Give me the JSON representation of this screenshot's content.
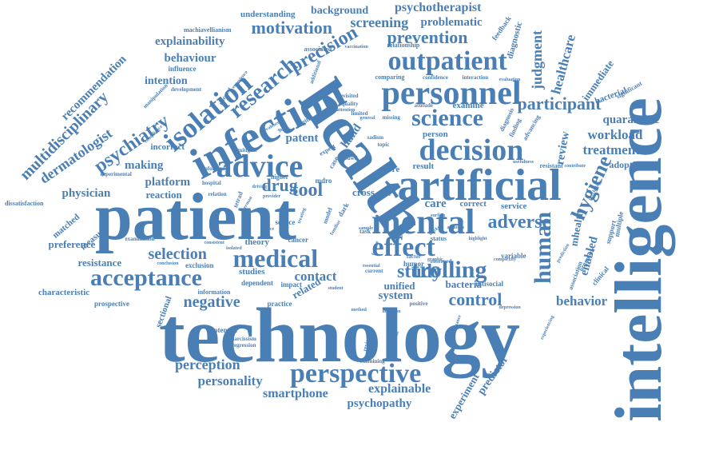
{
  "color": "#4a7fb5",
  "words": [
    {
      "text": "technology",
      "weight": 100
    },
    {
      "text": "intelligence",
      "weight": 92
    },
    {
      "text": "patient",
      "weight": 88
    },
    {
      "text": "health",
      "weight": 80
    },
    {
      "text": "artificial",
      "weight": 66
    },
    {
      "text": "infection",
      "weight": 64
    },
    {
      "text": "personnel",
      "weight": 52
    },
    {
      "text": "mental",
      "weight": 54
    },
    {
      "text": "decision",
      "weight": 48
    },
    {
      "text": "outpatient",
      "weight": 46
    },
    {
      "text": "perspective",
      "weight": 44
    },
    {
      "text": "advice",
      "weight": 44
    },
    {
      "text": "acceptance",
      "weight": 42
    },
    {
      "text": "medical",
      "weight": 40
    },
    {
      "text": "isolation",
      "weight": 42
    },
    {
      "text": "effect",
      "weight": 40
    },
    {
      "text": "trolling",
      "weight": 38
    },
    {
      "text": "science",
      "weight": 36
    },
    {
      "text": "research",
      "weight": 34
    },
    {
      "text": "precision",
      "weight": 32
    },
    {
      "text": "human",
      "weight": 34
    },
    {
      "text": "psychiatry",
      "weight": 30
    },
    {
      "text": "hygiene",
      "weight": 30
    },
    {
      "text": "participant",
      "weight": 28
    },
    {
      "text": "adverse",
      "weight": 28
    },
    {
      "text": "study",
      "weight": 28
    },
    {
      "text": "control",
      "weight": 26
    },
    {
      "text": "tool",
      "weight": 26
    },
    {
      "text": "drug",
      "weight": 24
    },
    {
      "text": "motivation",
      "weight": 24
    },
    {
      "text": "prevention",
      "weight": 24
    },
    {
      "text": "screening",
      "weight": 22
    },
    {
      "text": "multidisciplinary",
      "weight": 22
    },
    {
      "text": "dermatologist",
      "weight": 22
    },
    {
      "text": "negative",
      "weight": 22
    },
    {
      "text": "selection",
      "weight": 22
    },
    {
      "text": "perception",
      "weight": 20
    },
    {
      "text": "personality",
      "weight": 18
    },
    {
      "text": "smartphone",
      "weight": 18
    },
    {
      "text": "explainable",
      "weight": 18
    },
    {
      "text": "psychopathy",
      "weight": 16
    },
    {
      "text": "behavior",
      "weight": 18
    },
    {
      "text": "treatment",
      "weight": 18
    },
    {
      "text": "workload",
      "weight": 18
    },
    {
      "text": "quarantine",
      "weight": 16
    },
    {
      "text": "judgment",
      "weight": 18
    },
    {
      "text": "healthcare",
      "weight": 18
    },
    {
      "text": "psychotherapist",
      "weight": 16
    },
    {
      "text": "problematic",
      "weight": 16
    },
    {
      "text": "background",
      "weight": 14
    },
    {
      "text": "understanding",
      "weight": 12
    },
    {
      "text": "explainability",
      "weight": 16
    },
    {
      "text": "behaviour",
      "weight": 16
    },
    {
      "text": "intention",
      "weight": 16
    },
    {
      "text": "recommendation",
      "weight": 16
    },
    {
      "text": "physician",
      "weight": 16
    },
    {
      "text": "platform",
      "weight": 16
    },
    {
      "text": "making",
      "weight": 16
    },
    {
      "text": "reaction",
      "weight": 14
    },
    {
      "text": "resistance",
      "weight": 14
    },
    {
      "text": "preference",
      "weight": 14
    },
    {
      "text": "contact",
      "weight": 18
    },
    {
      "text": "system",
      "weight": 16
    },
    {
      "text": "care",
      "weight": 16
    },
    {
      "text": "cross",
      "weight": 14
    },
    {
      "text": "patent",
      "weight": 16
    },
    {
      "text": "hand",
      "weight": 16
    },
    {
      "text": "unified",
      "weight": 14
    },
    {
      "text": "bacteria",
      "weight": 14
    },
    {
      "text": "review",
      "weight": 16
    },
    {
      "text": "enabled",
      "weight": 16
    },
    {
      "text": "predictor",
      "weight": 14
    },
    {
      "text": "experiment",
      "weight": 14
    },
    {
      "text": "adoption",
      "weight": 12
    },
    {
      "text": "mhealth",
      "weight": 14
    },
    {
      "text": "immediate",
      "weight": 14
    },
    {
      "text": "bacterial",
      "weight": 12
    },
    {
      "text": "diagnostic",
      "weight": 12
    },
    {
      "text": "related",
      "weight": 14
    },
    {
      "text": "studies",
      "weight": 12
    },
    {
      "text": "theory",
      "weight": 12
    },
    {
      "text": "service",
      "weight": 12
    },
    {
      "text": "correct",
      "weight": 12
    },
    {
      "text": "result",
      "weight": 12
    },
    {
      "text": "more",
      "weight": 12
    },
    {
      "text": "examine",
      "weight": 12
    },
    {
      "text": "person",
      "weight": 12
    },
    {
      "text": "incorrect",
      "weight": 12
    },
    {
      "text": "measure",
      "weight": 12
    },
    {
      "text": "matched",
      "weight": 12
    },
    {
      "text": "characteristic",
      "weight": 12
    },
    {
      "text": "prospective",
      "weight": 10
    },
    {
      "text": "sectional",
      "weight": 12
    },
    {
      "text": "potential",
      "weight": 10
    },
    {
      "text": "practice",
      "weight": 10
    },
    {
      "text": "impact",
      "weight": 10
    },
    {
      "text": "dependent",
      "weight": 10
    },
    {
      "text": "exclusion",
      "weight": 10
    },
    {
      "text": "information",
      "weight": 9
    },
    {
      "text": "dissatisfaction",
      "weight": 9
    },
    {
      "text": "source",
      "weight": 10
    },
    {
      "text": "cancer",
      "weight": 10
    },
    {
      "text": "humor",
      "weight": 10
    },
    {
      "text": "variable",
      "weight": 10
    },
    {
      "text": "antisocial",
      "weight": 10
    },
    {
      "text": "clinical",
      "weight": 10
    },
    {
      "text": "support",
      "weight": 10
    },
    {
      "text": "multiple",
      "weight": 10
    },
    {
      "text": "association",
      "weight": 9
    },
    {
      "text": "organism",
      "weight": 9
    },
    {
      "text": "significant",
      "weight": 9
    },
    {
      "text": "resistant",
      "weight": 9
    },
    {
      "text": "finding",
      "weight": 9
    },
    {
      "text": "advancing",
      "weight": 9
    },
    {
      "text": "diagnosis",
      "weight": 9
    },
    {
      "text": "feedback",
      "weight": 10
    },
    {
      "text": "relationship",
      "weight": 9
    },
    {
      "text": "comparing",
      "weight": 9
    },
    {
      "text": "revisited",
      "weight": 8
    },
    {
      "text": "quality",
      "weight": 8
    },
    {
      "text": "limited",
      "weight": 8
    },
    {
      "text": "missing",
      "weight": 8
    },
    {
      "text": "attitude",
      "weight": 8
    },
    {
      "text": "sadism",
      "weight": 8
    },
    {
      "text": "topic",
      "weight": 8
    },
    {
      "text": "suwd",
      "weight": 8
    },
    {
      "text": "skin",
      "weight": 8
    },
    {
      "text": "digital",
      "weight": 9
    },
    {
      "text": "expert",
      "weight": 9
    },
    {
      "text": "case",
      "weight": 10
    },
    {
      "text": "mdro",
      "weight": 10
    },
    {
      "text": "higher",
      "weight": 9
    },
    {
      "text": "mitigate",
      "weight": 8
    },
    {
      "text": "informed",
      "weight": 8
    },
    {
      "text": "relation",
      "weight": 8
    },
    {
      "text": "hospital",
      "weight": 8
    },
    {
      "text": "experimental",
      "weight": 8
    },
    {
      "text": "manipulation",
      "weight": 8
    },
    {
      "text": "development",
      "weight": 8
    },
    {
      "text": "relevant",
      "weight": 8
    },
    {
      "text": "additional",
      "weight": 8
    },
    {
      "text": "influence",
      "weight": 10
    },
    {
      "text": "machiavellianism",
      "weight": 9
    },
    {
      "text": "associated",
      "weight": 9
    },
    {
      "text": "vaccination",
      "weight": 7
    },
    {
      "text": "confidence",
      "weight": 8
    },
    {
      "text": "interaction",
      "weight": 8
    },
    {
      "text": "evaluation",
      "weight": 7
    },
    {
      "text": "narcissism",
      "weight": 8
    },
    {
      "text": "regression",
      "weight": 8
    },
    {
      "text": "examination",
      "weight": 8
    },
    {
      "text": "conclusion",
      "weight": 7
    },
    {
      "text": "consistent",
      "weight": 7
    },
    {
      "text": "isolated",
      "weight": 7
    },
    {
      "text": "examining",
      "weight": 8
    },
    {
      "text": "reviewing",
      "weight": 8
    },
    {
      "text": "demographic",
      "weight": 7
    },
    {
      "text": "performance",
      "weight": 7
    },
    {
      "text": "depression",
      "weight": 7
    },
    {
      "text": "experiencing",
      "weight": 7
    },
    {
      "text": "method",
      "weight": 7
    },
    {
      "text": "student",
      "weight": 7
    },
    {
      "text": "positive",
      "weight": 8
    },
    {
      "text": "inclusion",
      "weight": 7
    },
    {
      "text": "current",
      "weight": 8
    },
    {
      "text": "factor",
      "weight": 8
    },
    {
      "text": "observed",
      "weight": 8
    },
    {
      "text": "status",
      "weight": 9
    },
    {
      "text": "gram",
      "weight": 8
    },
    {
      "text": "task",
      "weight": 9
    },
    {
      "text": "dark",
      "weight": 10
    },
    {
      "text": "model",
      "weight": 9
    },
    {
      "text": "future",
      "weight": 8
    },
    {
      "text": "complexity",
      "weight": 7
    },
    {
      "text": "trust",
      "weight": 8
    },
    {
      "text": "side",
      "weight": 8
    },
    {
      "text": "usefulness",
      "weight": 7
    },
    {
      "text": "contribute",
      "weight": 7
    },
    {
      "text": "glance",
      "weight": 7
    },
    {
      "text": "sample",
      "weight": 7
    },
    {
      "text": "surfing",
      "weight": 7
    },
    {
      "text": "worker",
      "weight": 7
    },
    {
      "text": "general",
      "weight": 7
    },
    {
      "text": "attention",
      "weight": 7
    },
    {
      "text": "provider",
      "weight": 7
    },
    {
      "text": "essential",
      "weight": 7
    },
    {
      "text": "graphic",
      "weight": 7
    },
    {
      "text": "psychology",
      "weight": 7
    },
    {
      "text": "specific",
      "weight": 7
    },
    {
      "text": "compliance",
      "weight": 7
    },
    {
      "text": "experience",
      "weight": 7
    },
    {
      "text": "prevalence",
      "weight": 7
    },
    {
      "text": "driving",
      "weight": 7
    },
    {
      "text": "tetrad",
      "weight": 8
    },
    {
      "text": "german",
      "weight": 7
    },
    {
      "text": "treating",
      "weight": 7
    },
    {
      "text": "familiar",
      "weight": 7
    },
    {
      "text": "prediction",
      "weight": 7
    },
    {
      "text": "highlight",
      "weight": 7
    },
    {
      "text": "addition",
      "weight": 7
    }
  ]
}
